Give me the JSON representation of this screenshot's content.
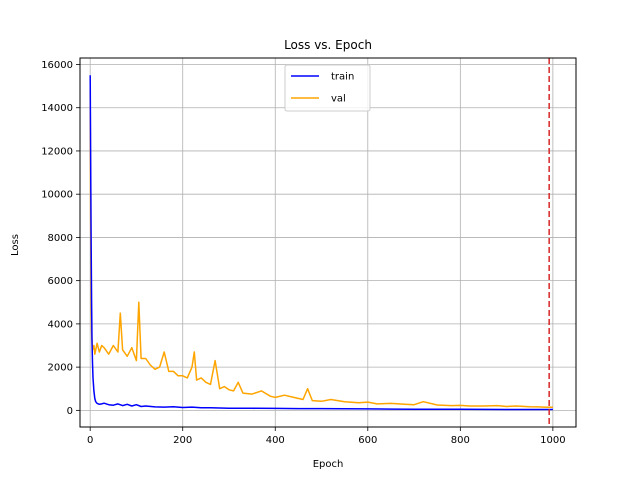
{
  "chart_data": {
    "type": "line",
    "title": "Loss vs. Epoch",
    "xlabel": "Epoch",
    "ylabel": "Loss",
    "xlim": [
      -22,
      1050
    ],
    "ylim": [
      -770,
      16300
    ],
    "xticks": [
      0,
      200,
      400,
      600,
      800,
      1000
    ],
    "yticks": [
      0,
      2000,
      4000,
      6000,
      8000,
      10000,
      12000,
      14000,
      16000
    ],
    "grid": true,
    "legend_position": "top-center",
    "vline": {
      "x": 992,
      "color": "#d62728",
      "style": "dashed"
    },
    "series": [
      {
        "name": "train",
        "color": "#0000ff",
        "x": [
          0,
          1,
          2,
          3,
          4,
          5,
          6,
          8,
          10,
          12,
          15,
          20,
          25,
          30,
          40,
          50,
          60,
          70,
          80,
          90,
          100,
          110,
          120,
          140,
          160,
          180,
          200,
          220,
          240,
          260,
          280,
          300,
          350,
          400,
          450,
          500,
          550,
          600,
          650,
          700,
          750,
          800,
          850,
          900,
          950,
          1000
        ],
        "y": [
          15500,
          12000,
          8000,
          5000,
          3200,
          2200,
          1500,
          900,
          550,
          400,
          320,
          280,
          300,
          330,
          260,
          240,
          300,
          220,
          280,
          200,
          260,
          180,
          200,
          160,
          150,
          170,
          130,
          150,
          120,
          120,
          110,
          100,
          95,
          90,
          80,
          80,
          70,
          65,
          60,
          55,
          50,
          50,
          45,
          40,
          40,
          40
        ]
      },
      {
        "name": "val",
        "color": "#ffa500",
        "x": [
          0,
          1,
          2,
          3,
          5,
          8,
          10,
          15,
          20,
          25,
          30,
          40,
          50,
          60,
          65,
          70,
          80,
          90,
          100,
          105,
          110,
          120,
          130,
          140,
          150,
          160,
          170,
          180,
          190,
          200,
          210,
          220,
          225,
          230,
          240,
          250,
          260,
          270,
          280,
          290,
          300,
          310,
          320,
          330,
          350,
          370,
          390,
          400,
          420,
          440,
          460,
          470,
          480,
          500,
          520,
          550,
          580,
          600,
          620,
          650,
          680,
          700,
          720,
          750,
          780,
          800,
          820,
          850,
          880,
          900,
          920,
          950,
          970,
          980,
          990,
          1000
        ],
        "y": [
          14800,
          9000,
          5200,
          3600,
          2800,
          3000,
          2600,
          3100,
          2700,
          3000,
          2900,
          2600,
          3000,
          2700,
          4500,
          2800,
          2500,
          2900,
          2300,
          5000,
          2400,
          2400,
          2100,
          1900,
          2000,
          2700,
          1800,
          1800,
          1600,
          1600,
          1500,
          2000,
          2700,
          1400,
          1500,
          1300,
          1200,
          2300,
          1000,
          1100,
          950,
          900,
          1300,
          800,
          750,
          900,
          650,
          600,
          700,
          600,
          500,
          1000,
          450,
          420,
          500,
          400,
          350,
          380,
          300,
          320,
          280,
          260,
          400,
          250,
          220,
          230,
          200,
          200,
          220,
          180,
          200,
          170,
          160,
          150,
          140,
          140
        ]
      }
    ]
  }
}
